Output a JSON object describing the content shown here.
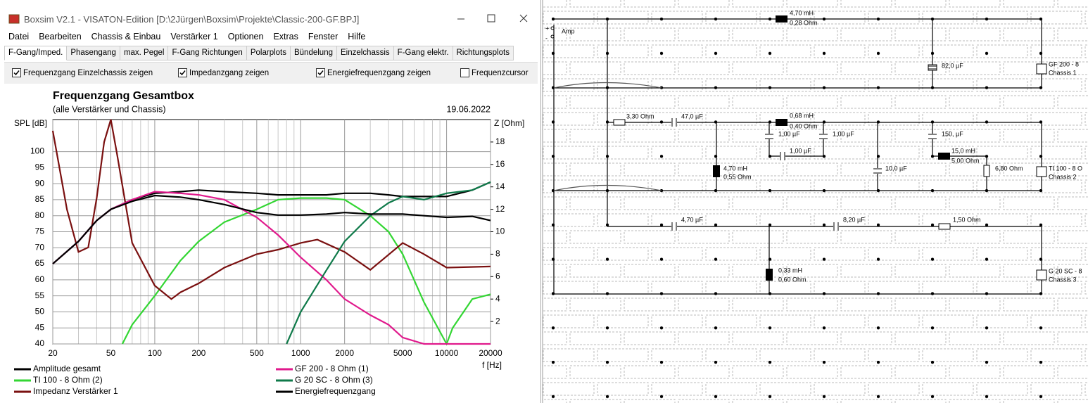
{
  "window": {
    "title": "Boxsim V2.1 - VISATON-Edition [D:\\2Jürgen\\Boxsim\\Projekte\\Classic-200-GF.BPJ]",
    "menu": [
      "Datei",
      "Bearbeiten",
      "Chassis & Einbau",
      "Verstärker 1",
      "Optionen",
      "Extras",
      "Fenster",
      "Hilfe"
    ],
    "tabs": [
      "F-Gang/Imped.",
      "Phasengang",
      "max. Pegel",
      "F-Gang Richtungen",
      "Polarplots",
      "Bündelung",
      "Einzelchassis",
      "F-Gang elektr.",
      "Richtungsplots"
    ],
    "checkboxes": [
      {
        "label": "Frequenzgang Einzelchassis zeigen",
        "checked": true
      },
      {
        "label": "Impedanzgang zeigen",
        "checked": true
      },
      {
        "label": "Energiefrequenzgang zeigen",
        "checked": true
      },
      {
        "label": "Frequenzcursor",
        "checked": false
      }
    ]
  },
  "chart_data": {
    "type": "line",
    "title": "Frequenzgang Gesamtbox",
    "subtitle": "(alle Verstärker und Chassis)",
    "date": "19.06.2022",
    "ylabel": "SPL [dB]",
    "y2label": "Z [Ohm]",
    "xlabel": "f [Hz]",
    "xscale": "log",
    "xlim": [
      20,
      20000
    ],
    "xticks": [
      20,
      50,
      100,
      200,
      500,
      1000,
      2000,
      5000,
      10000,
      20000
    ],
    "xminor": [
      30,
      40,
      60,
      70,
      80,
      90,
      300,
      400,
      600,
      700,
      800,
      900,
      3000,
      4000,
      6000,
      7000,
      8000,
      9000
    ],
    "ylim": [
      40,
      110
    ],
    "yticks": [
      40,
      45,
      50,
      55,
      60,
      65,
      70,
      75,
      80,
      85,
      90,
      95,
      100
    ],
    "y2lim": [
      0,
      20
    ],
    "y2ticks": [
      2,
      4,
      6,
      8,
      10,
      12,
      14,
      16,
      18
    ],
    "grid": true,
    "series": [
      {
        "name": "Amplitude gesamt",
        "color": "#000000",
        "x": [
          20,
          30,
          40,
          50,
          70,
          100,
          150,
          200,
          300,
          500,
          700,
          1000,
          1500,
          2000,
          3000,
          4000,
          5000,
          7000,
          10000,
          15000,
          20000
        ],
        "values": [
          65,
          72,
          78.5,
          82,
          85,
          87,
          87.5,
          88,
          87.5,
          87,
          86.5,
          86.5,
          86.5,
          87,
          87,
          86.5,
          86,
          86,
          86,
          88,
          90.5
        ]
      },
      {
        "name": "TI 100 - 8 Ohm (2)",
        "color": "#33d633",
        "x": [
          60,
          70,
          100,
          150,
          200,
          300,
          500,
          700,
          1000,
          1500,
          2000,
          3000,
          4000,
          5000,
          7000,
          10000,
          11000,
          15000,
          20000
        ],
        "values": [
          40,
          46,
          55,
          66,
          72,
          78,
          82,
          85,
          85.5,
          85.5,
          85,
          80,
          75,
          68,
          53,
          40,
          45,
          54,
          55.5
        ]
      },
      {
        "name": "Impedanz Verstärker 1",
        "color": "#7a1010",
        "axis": "y2",
        "x": [
          20,
          25,
          30,
          35,
          40,
          45,
          50,
          55,
          70,
          100,
          130,
          150,
          200,
          300,
          500,
          700,
          1000,
          1300,
          2000,
          3000,
          5000,
          7000,
          10000,
          20000
        ],
        "values": [
          19,
          12,
          8.2,
          8.6,
          13,
          18,
          20,
          17,
          9,
          5.2,
          4,
          4.6,
          5.4,
          6.8,
          8,
          8.4,
          9,
          9.3,
          8.2,
          6.6,
          9,
          8,
          6.8,
          6.9
        ]
      },
      {
        "name": "GF 200 - 8 Ohm (1)",
        "color": "#e0198c",
        "x": [
          20,
          30,
          40,
          50,
          70,
          100,
          150,
          200,
          300,
          500,
          700,
          1000,
          1500,
          2000,
          3000,
          4000,
          5000,
          7000,
          20000
        ],
        "values": [
          65,
          72,
          78.5,
          82,
          85,
          87.5,
          87,
          86.5,
          85,
          79.5,
          74,
          67,
          60,
          54,
          49,
          46,
          42,
          40,
          40
        ]
      },
      {
        "name": "G 20 SC - 8 Ohm (3)",
        "color": "#0f7a4a",
        "x": [
          800,
          1000,
          1500,
          2000,
          3000,
          4000,
          5000,
          7000,
          10000,
          15000,
          20000
        ],
        "values": [
          40,
          50,
          63,
          72,
          80,
          84,
          86,
          85,
          87,
          88,
          90.5
        ]
      },
      {
        "name": "Energiefrequenzgang",
        "color": "#000000",
        "x": [
          20,
          30,
          40,
          50,
          70,
          100,
          150,
          200,
          300,
          500,
          700,
          1000,
          1500,
          2000,
          3000,
          5000,
          7000,
          10000,
          15000,
          20000
        ],
        "values": [
          65,
          72,
          78.5,
          82,
          84.5,
          86.3,
          85.8,
          85,
          83.5,
          81,
          80.2,
          80.2,
          80.5,
          81,
          80.5,
          80.5,
          80,
          79.5,
          79.8,
          78.5
        ]
      }
    ]
  },
  "schematic": {
    "labels": [
      "Amp",
      "+",
      "-",
      "4,70 mH",
      "0,28 Ohm",
      "82,0 µF",
      "GF 200 - 8",
      "Chassis 1",
      "3,30 Ohm",
      "47,0 µF",
      "0,68 mH",
      "0,40 Ohm",
      "1,00 µF",
      "1,00 µF",
      "1,00 µF",
      "150, µF",
      "15,0 mH",
      "5,00 Ohm",
      "4,70 mH",
      "0,55 Ohm",
      "10,0 µF",
      "6,80 Ohm",
      "TI 100 - 8 O",
      "Chassis 2",
      "4,70 µF",
      "8,20 µF",
      "1,50 Ohm",
      "0,33 mH",
      "0,60 Ohm",
      "G 20 SC - 8",
      "Chassis 3"
    ]
  }
}
